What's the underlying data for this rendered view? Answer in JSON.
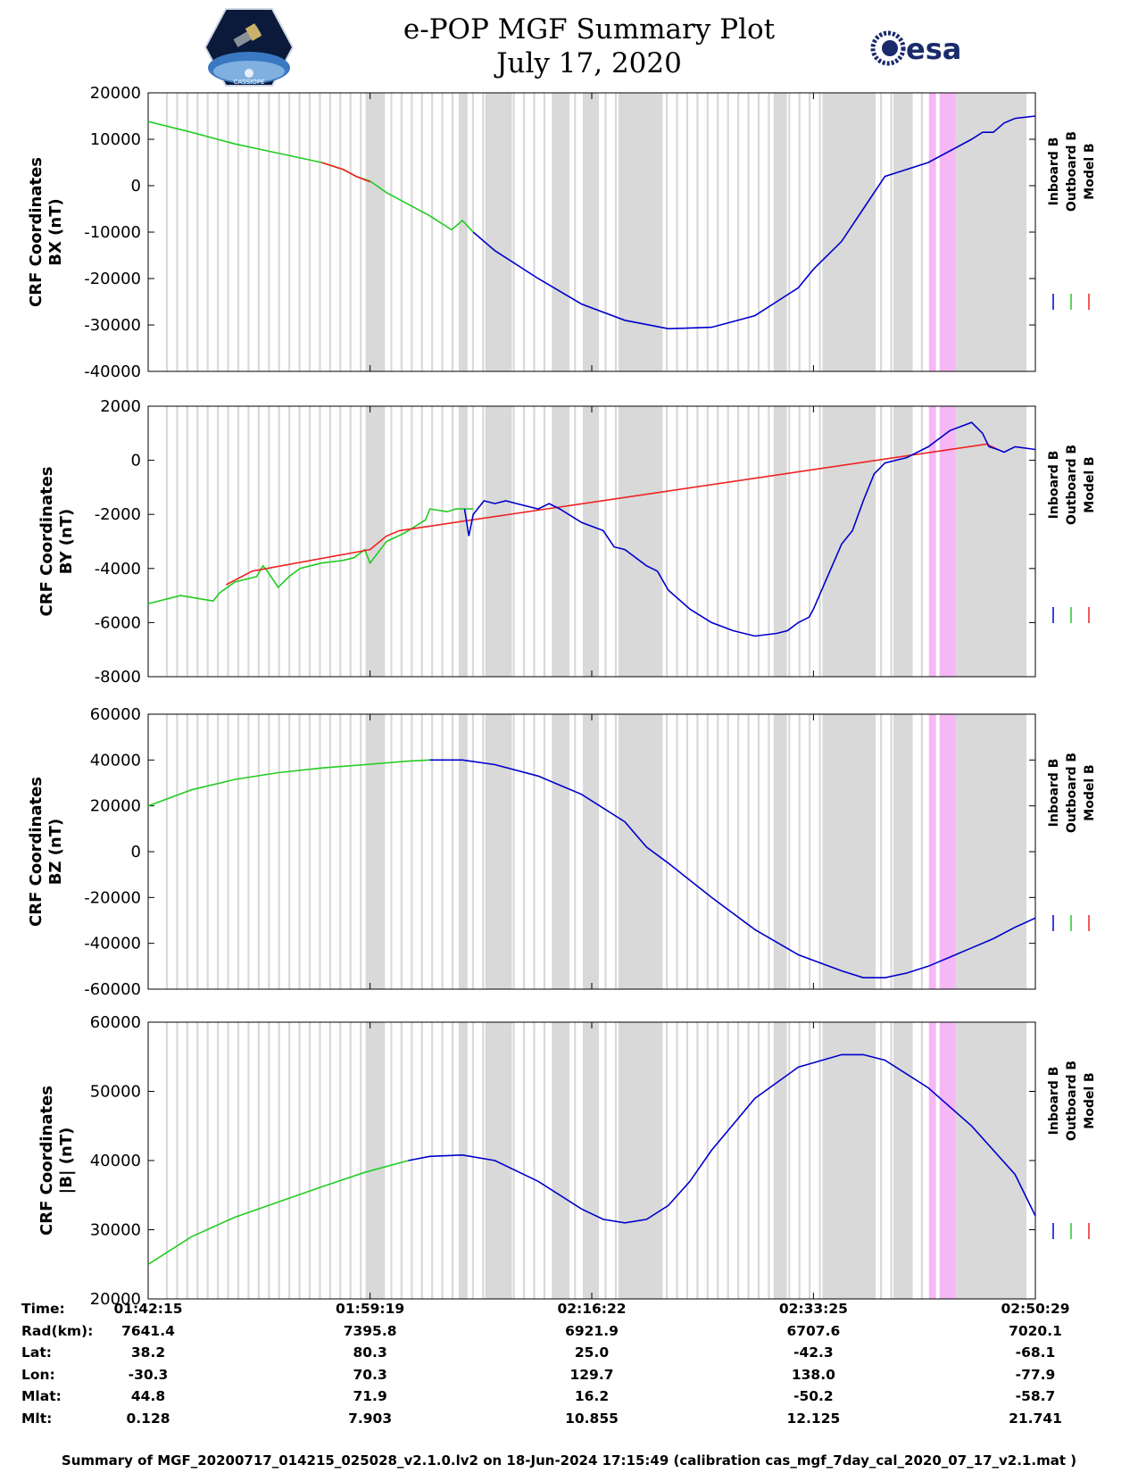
{
  "header": {
    "title_line1": "e-POP MGF Summary Plot",
    "title_line2": "July 17, 2020",
    "logo_left": "CASSIOPE",
    "logo_right": "esa"
  },
  "colors": {
    "inboard": "#0000cc",
    "outboard": "#22cc22",
    "model": "#ee2222",
    "gap_gray": "#d9d9d9",
    "highlight_pink": "#f5b8f5"
  },
  "legend": [
    "Inboard B",
    "Outboard B",
    "Model B"
  ],
  "x_axis": {
    "start_sec": 0,
    "end_sec": 4094,
    "tick_secs": [
      0,
      1024,
      2047,
      3070,
      4094
    ],
    "tick_labels": [
      "01:42:15",
      "01:59:19",
      "02:16:22",
      "02:33:25",
      "02:50:29"
    ]
  },
  "chart_data": [
    {
      "type": "line",
      "title": "",
      "ylabel_line1": "CRF Coordinates",
      "ylabel_line2": "BX (nT)",
      "ylim": [
        -40000,
        20000
      ],
      "yticks": [
        20000,
        10000,
        0,
        -10000,
        -20000,
        -30000,
        -40000
      ],
      "series": [
        {
          "name": "Outboard B",
          "color": "#22cc22",
          "x": [
            0,
            200,
            400,
            600,
            800,
            900,
            960,
            1024,
            1100,
            1200,
            1300,
            1400,
            1450,
            1480,
            1500
          ],
          "y": [
            13800,
            11500,
            9000,
            7000,
            5000,
            3500,
            2000,
            1000,
            -1500,
            -4000,
            -6500,
            -9500,
            -7500,
            -9000,
            -10000
          ]
        },
        {
          "name": "Model B",
          "color": "#ee2222",
          "x": [
            800,
            900,
            960,
            1024
          ],
          "y": [
            5000,
            3500,
            2000,
            800
          ]
        },
        {
          "name": "Inboard B",
          "color": "#0000cc",
          "x": [
            1500,
            1600,
            1800,
            2000,
            2200,
            2400,
            2600,
            2800,
            2900,
            3000,
            3070,
            3200,
            3300,
            3400,
            3600,
            3800,
            3850,
            3900,
            3950,
            4000,
            4094
          ],
          "y": [
            -10000,
            -14000,
            -20000,
            -25500,
            -29000,
            -30800,
            -30500,
            -28000,
            -25000,
            -22000,
            -18000,
            -12000,
            -5000,
            2000,
            5000,
            10000,
            11500,
            11500,
            13500,
            14500,
            15000
          ]
        }
      ]
    },
    {
      "type": "line",
      "title": "",
      "ylabel_line1": "CRF Coordinates",
      "ylabel_line2": "BY (nT)",
      "ylim": [
        -8000,
        2000
      ],
      "yticks": [
        2000,
        0,
        -2000,
        -4000,
        -6000,
        -8000
      ],
      "series": [
        {
          "name": "Outboard B",
          "color": "#22cc22",
          "x": [
            0,
            150,
            300,
            330,
            400,
            500,
            530,
            550,
            600,
            650,
            700,
            800,
            900,
            950,
            1000,
            1024,
            1100,
            1180,
            1200,
            1280,
            1300,
            1380,
            1420,
            1450,
            1500
          ],
          "y": [
            -5300,
            -5000,
            -5200,
            -4900,
            -4500,
            -4300,
            -3900,
            -4100,
            -4700,
            -4300,
            -4000,
            -3800,
            -3700,
            -3600,
            -3300,
            -3800,
            -3000,
            -2700,
            -2600,
            -2200,
            -1800,
            -1900,
            -1800,
            -1800,
            -1800
          ]
        },
        {
          "name": "Model B",
          "color": "#ee2222",
          "x": [
            360,
            480,
            1024,
            1100,
            1160,
            3870,
            3920
          ],
          "y": [
            -4600,
            -4100,
            -3300,
            -2800,
            -2600,
            600,
            400
          ]
        },
        {
          "name": "Inboard B",
          "color": "#0000cc",
          "x": [
            1460,
            1480,
            1500,
            1550,
            1600,
            1650,
            1700,
            1800,
            1850,
            1900,
            2000,
            2100,
            2150,
            2200,
            2300,
            2350,
            2400,
            2500,
            2600,
            2700,
            2800,
            2900,
            2950,
            3000,
            3050,
            3070,
            3200,
            3250,
            3300,
            3350,
            3400,
            3500,
            3600,
            3700,
            3800,
            3850,
            3880,
            3920,
            3950,
            4000,
            4094
          ],
          "y": [
            -1800,
            -2800,
            -2000,
            -1500,
            -1600,
            -1500,
            -1600,
            -1800,
            -1600,
            -1800,
            -2300,
            -2600,
            -3200,
            -3300,
            -3900,
            -4100,
            -4800,
            -5500,
            -6000,
            -6300,
            -6500,
            -6400,
            -6300,
            -6000,
            -5800,
            -5500,
            -3100,
            -2600,
            -1500,
            -500,
            -100,
            100,
            500,
            1100,
            1400,
            1000,
            500,
            400,
            300,
            500,
            400
          ]
        }
      ]
    },
    {
      "type": "line",
      "title": "",
      "ylabel_line1": "CRF Coordinates",
      "ylabel_line2": "BZ (nT)",
      "ylim": [
        -60000,
        60000
      ],
      "yticks": [
        60000,
        40000,
        20000,
        0,
        -20000,
        -40000,
        -60000
      ],
      "series": [
        {
          "name": "Outboard B",
          "color": "#22cc22",
          "x": [
            0,
            200,
            400,
            600,
            800,
            1000,
            1200,
            1300
          ],
          "y": [
            20000,
            27000,
            31500,
            34500,
            36500,
            38000,
            39500,
            40000
          ]
        },
        {
          "name": "Inboard B",
          "color": "#0000cc",
          "x": [
            1300,
            1450,
            1600,
            1800,
            2000,
            2200,
            2300,
            2400,
            2600,
            2800,
            3000,
            3200,
            3300,
            3400,
            3500,
            3600,
            3700,
            3800,
            3900,
            4000,
            4094
          ],
          "y": [
            40000,
            40000,
            38000,
            33000,
            25000,
            13000,
            2000,
            -5000,
            -20000,
            -34000,
            -45000,
            -52000,
            -55000,
            -55000,
            -53000,
            -50000,
            -46000,
            -42000,
            -38000,
            -33000,
            -29000
          ]
        }
      ]
    },
    {
      "type": "line",
      "title": "",
      "ylabel_line1": "CRF Coordinates",
      "ylabel_line2": "|B| (nT)",
      "ylim": [
        20000,
        60000
      ],
      "yticks": [
        60000,
        50000,
        40000,
        30000,
        20000
      ],
      "series": [
        {
          "name": "Outboard B",
          "color": "#22cc22",
          "x": [
            0,
            200,
            400,
            600,
            800,
            1000,
            1200
          ],
          "y": [
            25000,
            29000,
            31800,
            34000,
            36200,
            38300,
            40000
          ]
        },
        {
          "name": "Inboard B",
          "color": "#0000cc",
          "x": [
            1200,
            1300,
            1450,
            1600,
            1800,
            2000,
            2100,
            2200,
            2300,
            2400,
            2500,
            2600,
            2800,
            3000,
            3200,
            3300,
            3400,
            3500,
            3600,
            3800,
            4000,
            4094
          ],
          "y": [
            40000,
            40600,
            40800,
            40000,
            37000,
            33000,
            31500,
            31000,
            31500,
            33500,
            37000,
            41500,
            49000,
            53500,
            55300,
            55300,
            54500,
            52500,
            50500,
            45000,
            38000,
            32000
          ]
        }
      ]
    }
  ],
  "footer": {
    "rows": [
      {
        "label": "Time:",
        "values": [
          "01:42:15",
          "01:59:19",
          "02:16:22",
          "02:33:25",
          "02:50:29"
        ]
      },
      {
        "label": "Rad(km):",
        "values": [
          "7641.4",
          "7395.8",
          "6921.9",
          "6707.6",
          "7020.1"
        ]
      },
      {
        "label": "Lat:",
        "values": [
          "38.2",
          "80.3",
          "25.0",
          "-42.3",
          "-68.1"
        ]
      },
      {
        "label": "Lon:",
        "values": [
          "-30.3",
          "70.3",
          "129.7",
          "138.0",
          "-77.9"
        ]
      },
      {
        "label": "Mlat:",
        "values": [
          "44.8",
          "71.9",
          "16.2",
          "-50.2",
          "-58.7"
        ]
      },
      {
        "label": "Mlt:",
        "values": [
          "0.128",
          "7.903",
          "10.855",
          "12.125",
          "21.741"
        ]
      }
    ],
    "note": "Summary of MGF_20200717_014215_025028_v2.1.0.lv2 on 18-Jun-2024 17:15:49 (calibration cas_mgf_7day_cal_2020_07_17_v2.1.mat )"
  }
}
